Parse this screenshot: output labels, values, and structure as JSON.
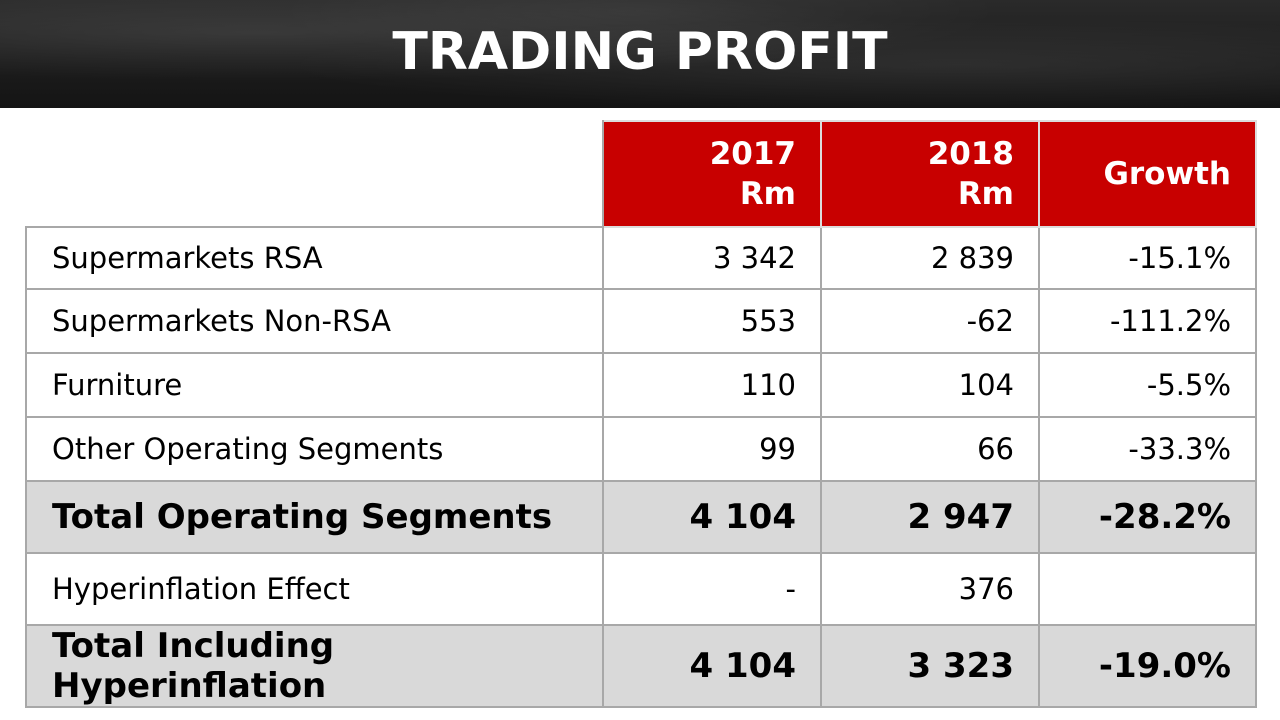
{
  "header": {
    "title": "TRADING PROFIT"
  },
  "table": {
    "columns": [
      {
        "line1": "2017",
        "line2": "Rm"
      },
      {
        "line1": "2018",
        "line2": "Rm"
      },
      {
        "line1": "Growth",
        "line2": ""
      }
    ],
    "rows": [
      {
        "label": "Supermarkets RSA",
        "v2017": "3 342",
        "v2018": "2 839",
        "growth": "-15.1%"
      },
      {
        "label": "Supermarkets Non-RSA",
        "v2017": "553",
        "v2018": "-62",
        "growth": "-111.2%"
      },
      {
        "label": "Furniture",
        "v2017": "110",
        "v2018": "104",
        "growth": "-5.5%"
      },
      {
        "label": "Other Operating Segments",
        "v2017": "99",
        "v2018": "66",
        "growth": "-33.3%"
      },
      {
        "label": "Total Operating Segments",
        "v2017": "4 104",
        "v2018": "2 947",
        "growth": "-28.2%"
      },
      {
        "label": "Hyperinflation Effect",
        "v2017": "-",
        "v2018": "376",
        "growth": ""
      },
      {
        "label": "Total Including Hyperinflation",
        "v2017": "4 104",
        "v2018": "3 323",
        "growth": "-19.0%"
      }
    ]
  },
  "colors": {
    "header_red": "#c80000",
    "total_row_grey": "#d9d9d9",
    "banner_dark": "#1c1c1c"
  }
}
